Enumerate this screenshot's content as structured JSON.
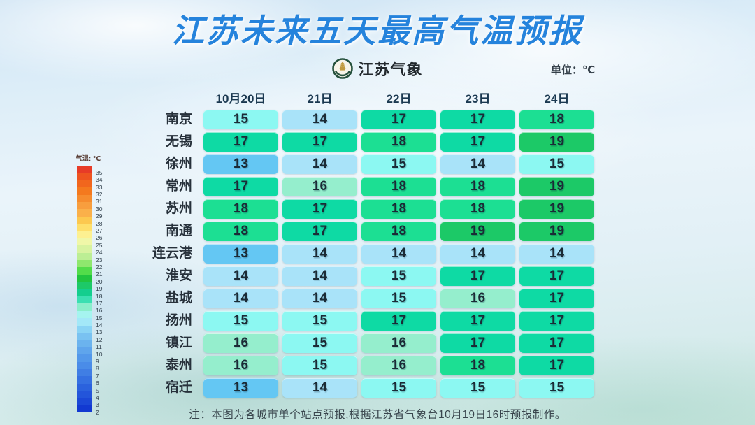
{
  "title": "江苏未来五天最高气温预报",
  "logo": {
    "text": "江苏气象"
  },
  "unit_label": "单位：℃",
  "footer_note": "注：本图为各城市单个站点预报,根据江苏省气象台10月19日16时预报制作。",
  "legend": {
    "title": "气温: ℃",
    "entries": [
      {
        "t": "35",
        "color": "#E73B27"
      },
      {
        "t": "34",
        "color": "#EE5420"
      },
      {
        "t": "33",
        "color": "#F1661D"
      },
      {
        "t": "32",
        "color": "#F4791E"
      },
      {
        "t": "31",
        "color": "#F68C2E"
      },
      {
        "t": "30",
        "color": "#F89E3E"
      },
      {
        "t": "29",
        "color": "#FAB04A"
      },
      {
        "t": "28",
        "color": "#FCC84F"
      },
      {
        "t": "27",
        "color": "#FEDF6B"
      },
      {
        "t": "26",
        "color": "#FDF091"
      },
      {
        "t": "25",
        "color": "#F0F7A8"
      },
      {
        "t": "24",
        "color": "#D8F3A0"
      },
      {
        "t": "23",
        "color": "#BCEE94"
      },
      {
        "t": "22",
        "color": "#8FE76E"
      },
      {
        "t": "21",
        "color": "#52DC4A"
      },
      {
        "t": "20",
        "color": "#21C43F"
      },
      {
        "t": "19",
        "color": "#1DC968"
      },
      {
        "t": "18",
        "color": "#14CE8E"
      },
      {
        "t": "17",
        "color": "#3BDFB2"
      },
      {
        "t": "16",
        "color": "#8AEECB"
      },
      {
        "t": "15",
        "color": "#A5F4EF"
      },
      {
        "t": "14",
        "color": "#A3E8F8"
      },
      {
        "t": "13",
        "color": "#8AD4F5"
      },
      {
        "t": "12",
        "color": "#79C2F1"
      },
      {
        "t": "11",
        "color": "#6BB3EE"
      },
      {
        "t": "10",
        "color": "#5FA5EC"
      },
      {
        "t": "9",
        "color": "#5398EA"
      },
      {
        "t": "8",
        "color": "#4A8CE8"
      },
      {
        "t": "7",
        "color": "#407EE4"
      },
      {
        "t": "6",
        "color": "#3570E1"
      },
      {
        "t": "5",
        "color": "#2B62DD"
      },
      {
        "t": "4",
        "color": "#2355DA"
      },
      {
        "t": "3",
        "color": "#1B48D6"
      },
      {
        "t": "2",
        "color": "#1239D1"
      }
    ]
  },
  "temp_colors": {
    "13": "#64C7F3",
    "14": "#A9E3F9",
    "15": "#8CF8F2",
    "16": "#95EECD",
    "17": "#0EDAA4",
    "18": "#1CDF93",
    "19": "#1CC967"
  },
  "chart_data": {
    "type": "heatmap",
    "title": "江苏未来五天最高气温预报",
    "unit": "℃",
    "columns": [
      "10月20日",
      "21日",
      "22日",
      "23日",
      "24日"
    ],
    "rows": [
      "南京",
      "无锡",
      "徐州",
      "常州",
      "苏州",
      "南通",
      "连云港",
      "淮安",
      "盐城",
      "扬州",
      "镇江",
      "泰州",
      "宿迁"
    ],
    "values": [
      [
        15,
        14,
        17,
        17,
        18
      ],
      [
        17,
        17,
        18,
        17,
        19
      ],
      [
        13,
        14,
        15,
        14,
        15
      ],
      [
        17,
        16,
        18,
        18,
        19
      ],
      [
        18,
        17,
        18,
        18,
        19
      ],
      [
        18,
        17,
        18,
        19,
        19
      ],
      [
        13,
        14,
        14,
        14,
        14
      ],
      [
        14,
        14,
        15,
        17,
        17
      ],
      [
        14,
        14,
        15,
        16,
        17
      ],
      [
        15,
        15,
        17,
        17,
        17
      ],
      [
        16,
        15,
        16,
        17,
        17
      ],
      [
        16,
        15,
        16,
        18,
        17
      ],
      [
        13,
        14,
        15,
        15,
        15
      ]
    ]
  }
}
